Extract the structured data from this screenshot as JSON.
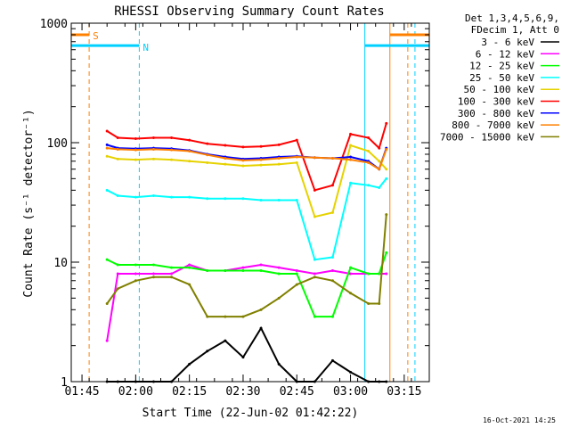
{
  "chart_data": {
    "type": "line",
    "title": "RHESSI Observing Summary Count Rates",
    "xlabel": "Start Time (22-Jun-02 01:42:22)",
    "ylabel": "Count Rate (s⁻¹ detector⁻¹)",
    "x_scale": "time",
    "xlim": [
      "01:42",
      "03:22"
    ],
    "x_ticks": [
      "01:45",
      "02:00",
      "02:15",
      "02:30",
      "02:45",
      "03:00",
      "03:15"
    ],
    "y_scale": "log",
    "ylim": [
      1,
      1000
    ],
    "y_ticks": [
      "1",
      "10",
      "100",
      "1000"
    ],
    "legend_header": [
      "Det 1,3,4,5,6,9,",
      "FDecim 1, Att 0"
    ],
    "legend_position": "right-outside",
    "timestamp": "16-Oct-2021 14:25",
    "x": [
      "01:52",
      "01:55",
      "02:00",
      "02:05",
      "02:10",
      "02:15",
      "02:20",
      "02:25",
      "02:30",
      "02:35",
      "02:40",
      "02:45",
      "02:50",
      "02:55",
      "03:00",
      "03:05",
      "03:08",
      "03:10"
    ],
    "series": [
      {
        "name": "3 - 6 keV",
        "color": "#000000",
        "values": [
          1,
          1,
          1,
          1,
          1,
          1.4,
          1.8,
          2.2,
          1.6,
          2.8,
          1.4,
          1,
          1,
          1.5,
          1.2,
          1,
          1,
          1
        ]
      },
      {
        "name": "6 - 12 keV",
        "color": "#ff00ff",
        "values": [
          2.2,
          8,
          8,
          8,
          8,
          9.5,
          8.5,
          8.5,
          9,
          9.5,
          9,
          8.5,
          8,
          8.5,
          8,
          8,
          8,
          8
        ]
      },
      {
        "name": "12 - 25 keV",
        "color": "#00ff00",
        "values": [
          10.5,
          9.5,
          9.5,
          9.5,
          9,
          9,
          8.5,
          8.5,
          8.5,
          8.5,
          8,
          8,
          3.5,
          3.5,
          9,
          8,
          8,
          12
        ]
      },
      {
        "name": "25 - 50 keV",
        "color": "#00ffff",
        "values": [
          40,
          36,
          35,
          36,
          35,
          35,
          34,
          34,
          34,
          33,
          33,
          33,
          10.5,
          11,
          46,
          44,
          42,
          50
        ]
      },
      {
        "name": "50 - 100 keV",
        "color": "#e6d200",
        "values": [
          77,
          73,
          72,
          73,
          72,
          70,
          68,
          66,
          64,
          65,
          66,
          68,
          24,
          26,
          95,
          85,
          70,
          60
        ]
      },
      {
        "name": "100 - 300 keV",
        "color": "#ff0000",
        "values": [
          125,
          110,
          108,
          110,
          110,
          105,
          98,
          95,
          92,
          93,
          96,
          105,
          40,
          44,
          118,
          110,
          90,
          145
        ]
      },
      {
        "name": "300 - 800 keV",
        "color": "#0000ff",
        "values": [
          96,
          90,
          89,
          90,
          89,
          86,
          80,
          76,
          73,
          74,
          76,
          77,
          75,
          74,
          76,
          70,
          60,
          90
        ]
      },
      {
        "name": "800 - 7000 keV",
        "color": "#ff8000",
        "values": [
          90,
          88,
          87,
          88,
          87,
          85,
          79,
          74,
          71,
          72,
          74,
          76,
          75,
          74,
          72,
          68,
          60,
          88
        ]
      },
      {
        "name": "7000 - 15000 keV",
        "color": "#808000",
        "values": [
          4.5,
          6,
          7,
          7.5,
          7.5,
          6.5,
          3.5,
          3.5,
          3.5,
          4,
          5,
          6.5,
          7.5,
          7,
          5.5,
          4.5,
          4.5,
          25
        ]
      }
    ],
    "annotations": {
      "S": {
        "label": "S",
        "color": "#ff8000",
        "time": "01:47"
      },
      "N": {
        "label": "N",
        "color": "#00d0ff",
        "time": "02:01"
      },
      "night_level": 650,
      "saa_level": 800,
      "vertical_markers": [
        {
          "time": "01:47",
          "color": "#ff8000",
          "style": "dashed"
        },
        {
          "time": "02:01",
          "color": "#00d0ff",
          "style": "dashed"
        },
        {
          "time": "03:04",
          "color": "#00d0ff",
          "style": "solid"
        },
        {
          "time": "03:11",
          "color": "#ff8000",
          "style": "solid"
        },
        {
          "time": "03:16",
          "color": "#ff8000",
          "style": "dashed"
        },
        {
          "time": "03:18",
          "color": "#00d0ff",
          "style": "dashed"
        }
      ]
    },
    "grid": false
  }
}
